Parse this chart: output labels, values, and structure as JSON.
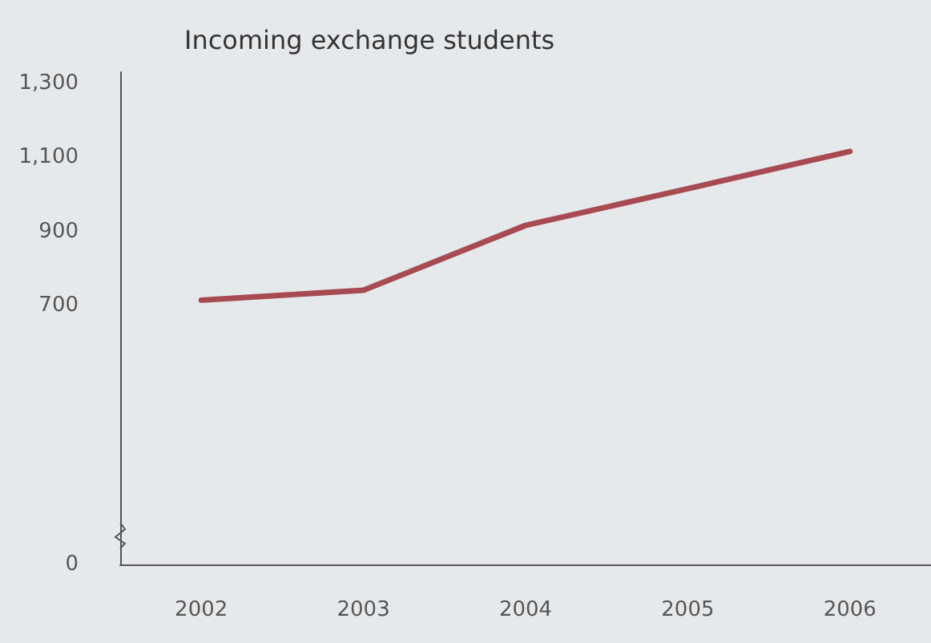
{
  "chart_data": {
    "type": "line",
    "title": "Incoming exchange students",
    "categories": [
      "2002",
      "2003",
      "2004",
      "2005",
      "2006"
    ],
    "series": [
      {
        "color": "#a84a52",
        "values": [
          714,
          741,
          916,
          1015,
          1116
        ]
      }
    ],
    "ylim": [
      0,
      1330
    ],
    "yticks": [
      0,
      {
        "value": 700,
        "label": "700"
      },
      {
        "value": 900,
        "label": "900"
      },
      {
        "value": 1100,
        "label": "1,100"
      },
      {
        "value": 1300,
        "label": "1,300"
      }
    ],
    "grid": false,
    "marker": "none",
    "line_style": "solid"
  }
}
